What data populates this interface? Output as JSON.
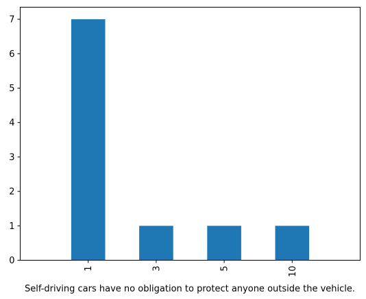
{
  "chart_data": {
    "type": "bar",
    "categories": [
      "1",
      "3",
      "5",
      "10"
    ],
    "values": [
      7,
      1,
      1,
      1
    ],
    "title": "",
    "xlabel": "Self-driving cars have no obligation to protect anyone outside the vehicle.",
    "ylabel": "",
    "ylim": [
      0,
      7.35
    ],
    "yticks": [
      0,
      1,
      2,
      3,
      4,
      5,
      6,
      7
    ],
    "grid": false,
    "legend": "none",
    "x_tick_rotation": "vertical",
    "bar_color": "#1f77b4"
  }
}
